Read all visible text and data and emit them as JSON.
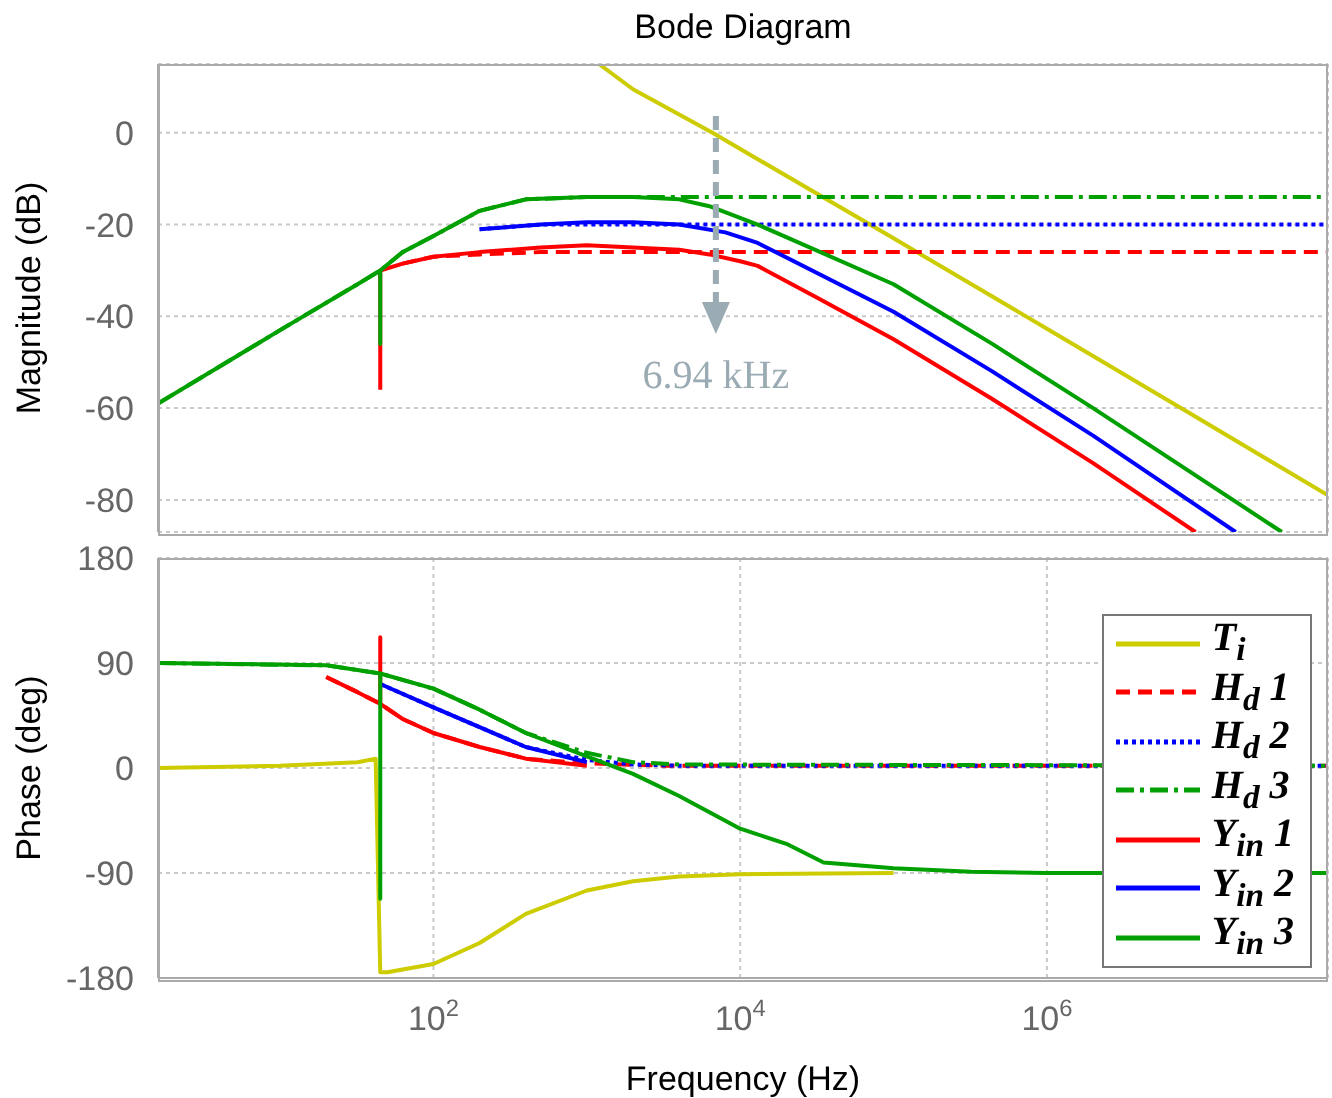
{
  "chart_data": [
    {
      "type": "line",
      "title": "Bode Diagram",
      "ylabel": "Magnitude (dB)",
      "xlim": [
        1.6,
        68000000
      ],
      "ylim": [
        -87,
        15
      ],
      "xticks": [
        {
          "value": 100,
          "label": null
        },
        {
          "value": 10000,
          "label": null
        },
        {
          "value": 1000000,
          "label": null
        }
      ],
      "yticks": [
        -80,
        -60,
        -40,
        -20,
        0
      ],
      "tick_labels": "y",
      "log": "x",
      "grid": true,
      "ref_lines": [
        {
          "axis": "x",
          "value": 6940,
          "label": "6.94 kHz",
          "color": "#9aabb3",
          "line_style": "dashed"
        }
      ],
      "series": [
        {
          "color": "#cccc00",
          "line_style": "solid",
          "x": [
            1200,
            2000,
            6600,
            100000,
            1000000,
            10000000,
            68000000
          ],
          "values": [
            15,
            9.5,
            0,
            -23,
            -42.7,
            -62.5,
            -79
          ]
        },
        {
          "color": "#ff0000",
          "line_style": "dashed",
          "x": [
            63,
            100,
            200,
            500,
            68000000
          ],
          "values": [
            -28.5,
            -27,
            -26.5,
            -26,
            -26
          ]
        },
        {
          "color": "#0000ff",
          "line_style": "dotted",
          "x": [
            200,
            500,
            68000000
          ],
          "values": [
            -21,
            -20,
            -20
          ]
        },
        {
          "color": "#00a000",
          "line_style": "dashdot",
          "x": [
            1.6,
            10,
            32,
            45,
            63,
            100,
            200,
            400,
            1000,
            68000000
          ],
          "values": [
            -59,
            -43,
            -33,
            -30,
            -26,
            -22.5,
            -17,
            -14.5,
            -14,
            -14
          ]
        },
        {
          "color": "#ff0000",
          "line_style": "solid",
          "x": [
            45,
            45,
            63,
            100,
            200,
            500,
            1000,
            2000,
            4000,
            6300,
            10000,
            13000,
            32000,
            100000,
            440000,
            2000000,
            9300000
          ],
          "values": [
            -56,
            -30,
            -28.5,
            -27,
            -26,
            -25,
            -24.5,
            -25,
            -25.5,
            -26.5,
            -28,
            -29,
            -36,
            -45,
            -58,
            -72,
            -87
          ]
        },
        {
          "color": "#0000ff",
          "line_style": "solid",
          "x": [
            200,
            500,
            1000,
            2000,
            4000,
            8000,
            13000,
            100000,
            440000,
            2000000,
            17000000
          ],
          "values": [
            -21,
            -20,
            -19.5,
            -19.5,
            -20,
            -21.7,
            -24,
            -39,
            -52,
            -66,
            -87
          ]
        },
        {
          "color": "#00a000",
          "line_style": "solid",
          "x": [
            1.6,
            10,
            32,
            45,
            45,
            45,
            63,
            100,
            200,
            400,
            1000,
            2000,
            4000,
            6300,
            13000,
            100000,
            440000,
            2000000,
            34000000
          ],
          "values": [
            -59,
            -43,
            -33,
            -30,
            -46,
            -30,
            -26,
            -22.5,
            -17,
            -14.5,
            -14,
            -14,
            -14.5,
            -16,
            -20,
            -33,
            -46,
            -60,
            -87
          ]
        }
      ]
    },
    {
      "type": "line",
      "xlabel": "Frequency  (Hz)",
      "ylabel": "Phase (deg)",
      "xlim": [
        1.6,
        68000000
      ],
      "ylim": [
        -180,
        180
      ],
      "xticks": [
        {
          "value": 100,
          "label": "10$^{2}$"
        },
        {
          "value": 10000,
          "label": "10$^{4}$"
        },
        {
          "value": 1000000,
          "label": "10$^{6}$"
        }
      ],
      "yticks": [
        -180,
        -90,
        0,
        90,
        180
      ],
      "log": "x",
      "grid": true,
      "legend": "bottom right",
      "series": [
        {
          "name": "T$_{i}$",
          "color": "#cccc00",
          "line_style": "solid",
          "x": [
            1.6,
            10,
            32,
            42,
            45,
            50,
            100,
            200,
            400,
            1000,
            2000,
            4000,
            10000,
            100000
          ],
          "values": [
            0,
            2,
            5,
            8,
            -175,
            -175,
            -168,
            -150,
            -125,
            -105,
            -97,
            -93,
            -91,
            -90
          ]
        },
        {
          "name": "H$_{d}$ 1",
          "color": "#ff0000",
          "line_style": "dashed",
          "x": [
            20,
            32,
            45,
            63,
            100,
            200,
            400,
            1000,
            3200,
            68000000
          ],
          "values": [
            78,
            65,
            55,
            42,
            30,
            18,
            8,
            4,
            2,
            2
          ]
        },
        {
          "name": "H$_{d}$ 2",
          "color": "#0000ff",
          "line_style": "dotted",
          "x": [
            45,
            100,
            200,
            400,
            1000,
            2000,
            4000,
            68000000
          ],
          "values": [
            72,
            52,
            35,
            18,
            7,
            3,
            2,
            2
          ]
        },
        {
          "name": "H$_{d}$ 3",
          "color": "#00a000",
          "line_style": "dashdot",
          "x": [
            1.6,
            20,
            45,
            100,
            200,
            400,
            1000,
            2000,
            4000,
            68000000
          ],
          "values": [
            90,
            88,
            81,
            68,
            50,
            30,
            13,
            5,
            3,
            2
          ]
        },
        {
          "name": "Y$_{in}$ 1",
          "color": "#ff0000",
          "line_style": "solid",
          "x": [
            20,
            32,
            45,
            45,
            45,
            63,
            100,
            200,
            400,
            1000
          ],
          "values": [
            78,
            65,
            55,
            112,
            55,
            42,
            30,
            18,
            8,
            2
          ]
        },
        {
          "name": "Y$_{in}$ 2",
          "color": "#0000ff",
          "line_style": "solid",
          "x": [
            45,
            100,
            200,
            400,
            1000
          ],
          "values": [
            72,
            52,
            35,
            18,
            5
          ]
        },
        {
          "name": "Y$_{in}$ 3",
          "color": "#00a000",
          "line_style": "solid",
          "x": [
            1.6,
            20,
            45,
            45,
            45,
            100,
            200,
            400,
            1000,
            2000,
            4000,
            10000,
            20000,
            35000,
            100000,
            320000,
            1000000,
            68000000
          ],
          "values": [
            90,
            88,
            81,
            -112,
            81,
            68,
            50,
            30,
            10,
            -5,
            -24,
            -52,
            -65,
            -81,
            -86,
            -89,
            -90,
            -90
          ]
        }
      ]
    }
  ]
}
